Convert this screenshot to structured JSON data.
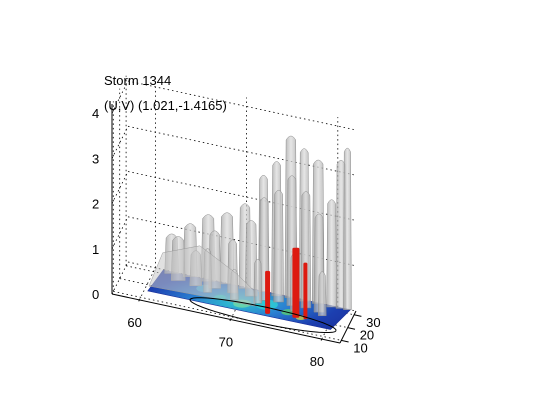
{
  "chart_data": {
    "type": "3d-surface",
    "title": "Storm 1344",
    "subtitle": "(U,V) (1.021,-1.4165)",
    "xlabel": "",
    "ylabel": "",
    "zlabel": "",
    "x_ticks": [
      "60",
      "70",
      "80"
    ],
    "y_ticks": [
      "10",
      "20",
      "30"
    ],
    "z_ticks": [
      "0",
      "1",
      "2",
      "3",
      "4"
    ],
    "xlim": [
      57,
      82
    ],
    "ylim": [
      8,
      33
    ],
    "zlim": [
      0,
      4.2
    ],
    "grid": true,
    "colors": {
      "isosurface": "#b4b4b4",
      "core": "#dd1a10",
      "base_low": "#1a33a8",
      "base_high": "#2fc4cf"
    }
  }
}
